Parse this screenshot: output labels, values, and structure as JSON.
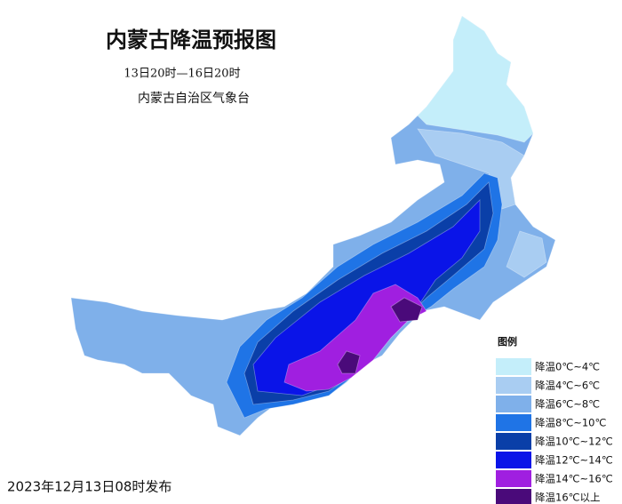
{
  "title": "内蒙古降温预报图",
  "period": "13日20时—16日20时",
  "issuer": "内蒙古自治区气象台",
  "legend": {
    "title": "图例",
    "items": [
      {
        "label": "降温0℃~4℃",
        "color": "#c4eefa"
      },
      {
        "label": "降温4℃~6℃",
        "color": "#a9cdf2"
      },
      {
        "label": "降温6℃~8℃",
        "color": "#7fb0ea"
      },
      {
        "label": "降温8℃~10℃",
        "color": "#1f74e6"
      },
      {
        "label": "降温10℃~12℃",
        "color": "#0a3fa8"
      },
      {
        "label": "降温12℃~14℃",
        "color": "#0a14e8"
      },
      {
        "label": "降温14℃~16℃",
        "color": "#a01fe0"
      },
      {
        "label": "降温16℃以上",
        "color": "#4a0a7a"
      }
    ]
  },
  "footer": "2023年12月13日08时发布"
}
